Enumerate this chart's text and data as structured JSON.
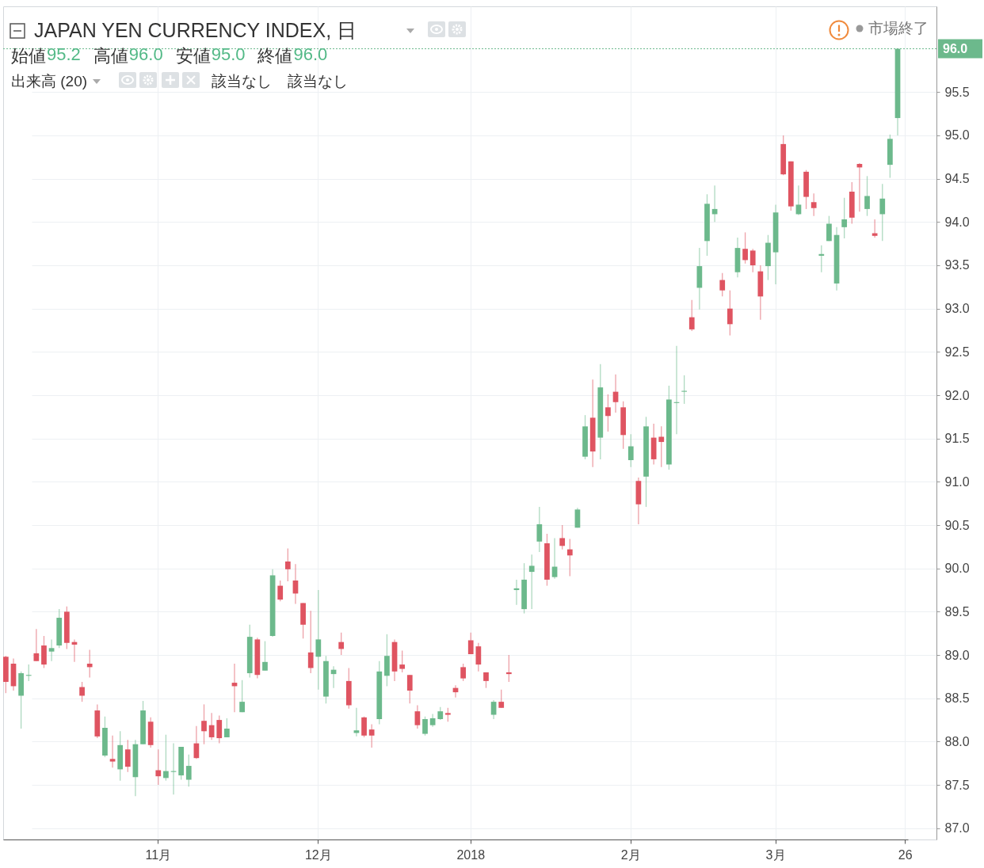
{
  "chart_data": {
    "type": "candlestick",
    "title": "JAPAN YEN CURRENCY INDEX, 日",
    "annotations": [
      "始値",
      "95.2",
      "高値",
      "96.0",
      "安値",
      "95.0",
      "終値",
      "96.0",
      "出来高 (20)",
      "該当なし",
      "該当なし",
      "市場終了"
    ],
    "categories": [
      null,
      null,
      null,
      null,
      null,
      null,
      null,
      null,
      null,
      null,
      null,
      null,
      null,
      null,
      null,
      null,
      null,
      null,
      null,
      null,
      "11月",
      null,
      null,
      null,
      null,
      null,
      null,
      null,
      null,
      null,
      null,
      null,
      null,
      null,
      null,
      null,
      null,
      null,
      null,
      null,
      null,
      "12月",
      null,
      null,
      null,
      null,
      null,
      null,
      null,
      null,
      null,
      null,
      null,
      null,
      null,
      null,
      null,
      null,
      null,
      null,
      null,
      "2018",
      null,
      null,
      null,
      null,
      null,
      null,
      null,
      null,
      null,
      null,
      null,
      null,
      null,
      null,
      null,
      null,
      null,
      null,
      null,
      null,
      "2月",
      null,
      null,
      null,
      null,
      null,
      null,
      null,
      null,
      null,
      null,
      null,
      null,
      null,
      null,
      null,
      null,
      null,
      null,
      "3月",
      null,
      null,
      null,
      null,
      null,
      null,
      null,
      null,
      null,
      null,
      null,
      null,
      null,
      null,
      null,
      null,
      "26"
    ],
    "ohlc": [
      [
        88.98,
        88.99,
        88.56,
        88.69
      ],
      [
        88.9,
        88.96,
        88.59,
        88.64
      ],
      [
        88.53,
        88.81,
        88.15,
        88.79
      ],
      [
        88.76,
        88.89,
        88.7,
        88.77
      ],
      [
        89.02,
        89.3,
        88.93,
        88.93
      ],
      [
        89.11,
        89.22,
        88.85,
        88.89
      ],
      [
        89.04,
        89.18,
        88.93,
        89.08
      ],
      [
        89.11,
        89.53,
        89.08,
        89.43
      ],
      [
        89.5,
        89.56,
        89.07,
        89.14
      ],
      [
        89.15,
        89.18,
        88.92,
        89.12
      ],
      [
        88.63,
        88.69,
        88.46,
        88.53
      ],
      [
        88.9,
        89.06,
        88.74,
        88.86
      ],
      [
        88.36,
        88.43,
        88.04,
        88.06
      ],
      [
        87.84,
        88.29,
        87.82,
        88.16
      ],
      [
        87.8,
        88.07,
        87.7,
        87.77
      ],
      [
        87.68,
        88.12,
        87.55,
        87.96
      ],
      [
        87.91,
        88.02,
        87.65,
        87.71
      ],
      [
        87.59,
        88.02,
        87.37,
        87.97
      ],
      [
        87.97,
        88.47,
        87.97,
        88.36
      ],
      [
        88.23,
        88.28,
        87.93,
        87.96
      ],
      [
        87.67,
        87.91,
        87.5,
        87.6
      ],
      [
        87.58,
        88.08,
        87.55,
        87.66
      ],
      [
        87.65,
        87.98,
        87.39,
        87.66
      ],
      [
        87.61,
        87.94,
        87.56,
        87.94
      ],
      [
        87.56,
        87.85,
        87.48,
        87.72
      ],
      [
        87.98,
        88.18,
        87.8,
        87.81
      ],
      [
        88.24,
        88.43,
        87.97,
        88.12
      ],
      [
        88.19,
        88.33,
        88.02,
        88.05
      ],
      [
        88.25,
        88.3,
        87.98,
        88.04
      ],
      [
        88.05,
        88.27,
        88.05,
        88.15
      ],
      [
        88.68,
        88.9,
        88.34,
        88.64
      ],
      [
        88.34,
        88.71,
        88.34,
        88.46
      ],
      [
        88.79,
        89.35,
        88.74,
        89.21
      ],
      [
        89.18,
        89.2,
        88.73,
        88.77
      ],
      [
        88.82,
        89.16,
        88.82,
        88.92
      ],
      [
        89.22,
        89.99,
        89.21,
        89.92
      ],
      [
        89.8,
        89.86,
        89.62,
        89.64
      ],
      [
        90.08,
        90.23,
        89.85,
        89.99
      ],
      [
        89.86,
        90.05,
        89.59,
        89.71
      ],
      [
        89.6,
        89.6,
        89.19,
        89.35
      ],
      [
        89.03,
        89.51,
        88.79,
        88.85
      ],
      [
        88.98,
        89.75,
        88.6,
        89.18
      ],
      [
        88.52,
        88.99,
        88.44,
        88.93
      ],
      [
        88.78,
        88.87,
        88.62,
        88.83
      ],
      [
        89.15,
        89.26,
        89.0,
        89.07
      ],
      [
        88.7,
        88.85,
        88.38,
        88.42
      ],
      [
        88.1,
        88.39,
        88.06,
        88.13
      ],
      [
        88.28,
        88.29,
        88.05,
        88.07
      ],
      [
        88.14,
        88.2,
        87.93,
        88.07
      ],
      [
        88.26,
        88.93,
        88.2,
        88.81
      ],
      [
        88.76,
        89.24,
        88.64,
        88.99
      ],
      [
        89.15,
        89.18,
        88.7,
        88.81
      ],
      [
        88.89,
        89.05,
        88.8,
        88.84
      ],
      [
        88.77,
        88.77,
        88.44,
        88.59
      ],
      [
        88.35,
        88.42,
        88.15,
        88.19
      ],
      [
        88.09,
        88.29,
        88.07,
        88.26
      ],
      [
        88.19,
        88.32,
        88.17,
        88.27
      ],
      [
        88.26,
        88.4,
        88.25,
        88.35
      ],
      [
        88.33,
        88.39,
        88.23,
        88.31
      ],
      [
        88.62,
        88.65,
        88.51,
        88.57
      ],
      [
        88.86,
        88.9,
        88.7,
        88.73
      ],
      [
        89.17,
        89.26,
        89.01,
        89.01
      ],
      [
        89.1,
        89.14,
        88.81,
        88.89
      ],
      [
        88.8,
        88.8,
        88.62,
        88.7
      ],
      [
        88.31,
        88.48,
        88.26,
        88.46
      ],
      [
        88.46,
        88.6,
        88.39,
        88.39
      ],
      [
        88.8,
        89.0,
        88.69,
        88.78
      ],
      [
        89.75,
        89.87,
        89.58,
        89.77
      ],
      [
        89.53,
        90.06,
        89.48,
        89.87
      ],
      [
        89.96,
        90.16,
        89.53,
        90.03
      ],
      [
        90.31,
        90.71,
        90.19,
        90.51
      ],
      [
        90.29,
        90.4,
        89.8,
        89.87
      ],
      [
        89.9,
        90.35,
        89.88,
        90.02
      ],
      [
        90.35,
        90.5,
        90.22,
        90.26
      ],
      [
        90.22,
        90.34,
        89.91,
        90.15
      ],
      [
        90.47,
        90.7,
        90.47,
        90.68
      ],
      [
        91.29,
        91.77,
        91.26,
        91.64
      ],
      [
        91.74,
        92.18,
        91.17,
        91.35
      ],
      [
        91.51,
        92.36,
        91.26,
        92.09
      ],
      [
        91.86,
        92.01,
        91.58,
        91.76
      ],
      [
        92.04,
        92.24,
        91.8,
        91.92
      ],
      [
        91.86,
        91.93,
        91.38,
        91.54
      ],
      [
        91.25,
        91.55,
        91.17,
        91.41
      ],
      [
        91.01,
        91.05,
        90.51,
        90.74
      ],
      [
        91.06,
        91.75,
        90.71,
        91.64
      ],
      [
        91.51,
        91.67,
        91.2,
        91.26
      ],
      [
        91.52,
        91.64,
        91.17,
        91.46
      ],
      [
        91.2,
        92.11,
        91.14,
        91.95
      ],
      [
        91.91,
        92.57,
        91.55,
        91.92
      ],
      [
        92.04,
        92.23,
        91.9,
        92.05
      ],
      [
        92.9,
        93.1,
        92.74,
        92.76
      ],
      [
        93.24,
        93.7,
        92.99,
        93.49
      ],
      [
        93.78,
        94.32,
        93.61,
        94.21
      ],
      [
        94.09,
        94.42,
        94.0,
        94.15
      ],
      [
        93.33,
        93.41,
        93.14,
        93.21
      ],
      [
        93.0,
        93.21,
        92.69,
        92.82
      ],
      [
        93.42,
        93.82,
        93.36,
        93.7
      ],
      [
        93.69,
        93.88,
        93.52,
        93.56
      ],
      [
        93.67,
        93.69,
        93.42,
        93.5
      ],
      [
        93.43,
        93.5,
        92.87,
        93.14
      ],
      [
        93.49,
        93.85,
        93.33,
        93.76
      ],
      [
        93.65,
        94.2,
        93.28,
        94.11
      ],
      [
        94.9,
        95.0,
        94.54,
        94.55
      ],
      [
        94.7,
        94.7,
        94.13,
        94.18
      ],
      [
        94.09,
        94.42,
        94.08,
        94.2
      ],
      [
        94.58,
        94.6,
        94.15,
        94.29
      ],
      [
        94.23,
        94.33,
        94.07,
        94.16
      ],
      [
        93.61,
        93.73,
        93.42,
        93.63
      ],
      [
        93.78,
        94.07,
        93.78,
        93.98
      ],
      [
        93.29,
        93.94,
        93.21,
        93.85
      ],
      [
        93.94,
        94.28,
        93.81,
        94.03
      ],
      [
        94.35,
        94.46,
        93.98,
        94.05
      ],
      [
        94.67,
        94.68,
        94.12,
        94.63
      ],
      [
        94.15,
        94.53,
        94.07,
        94.3
      ],
      [
        93.87,
        94.03,
        93.82,
        93.84
      ],
      [
        94.09,
        94.44,
        93.78,
        94.27
      ],
      [
        94.66,
        95.01,
        94.51,
        94.96
      ],
      [
        95.2,
        96.0,
        95.0,
        96.0
      ],
      null
    ],
    "colors": [
      "#df5461",
      "#df5461",
      "#6cb98c",
      "#6cb98c",
      "#df5461",
      "#df5461",
      "#6cb98c",
      "#6cb98c",
      "#df5461",
      "#df5461",
      "#df5461",
      "#df5461",
      "#df5461",
      "#6cb98c",
      "#df5461",
      "#6cb98c",
      "#df5461",
      "#6cb98c",
      "#6cb98c",
      "#df5461",
      "#df5461",
      "#6cb98c",
      "#6cb98c",
      "#6cb98c",
      "#6cb98c",
      "#df5461",
      "#df5461",
      "#df5461",
      "#df5461",
      "#6cb98c",
      "#df5461",
      "#6cb98c",
      "#6cb98c",
      "#df5461",
      "#6cb98c",
      "#6cb98c",
      "#df5461",
      "#df5461",
      "#df5461",
      "#df5461",
      "#df5461",
      "#6cb98c",
      "#6cb98c",
      "#6cb98c",
      "#df5461",
      "#df5461",
      "#6cb98c",
      "#df5461",
      "#df5461",
      "#6cb98c",
      "#6cb98c",
      "#df5461",
      "#df5461",
      "#df5461",
      "#df5461",
      "#6cb98c",
      "#6cb98c",
      "#6cb98c",
      "#df5461",
      "#df5461",
      "#df5461",
      "#df5461",
      "#df5461",
      "#df5461",
      "#6cb98c",
      "#df5461",
      "#df5461",
      "#6cb98c",
      "#6cb98c",
      "#6cb98c",
      "#6cb98c",
      "#df5461",
      "#6cb98c",
      "#df5461",
      "#df5461",
      "#6cb98c",
      "#6cb98c",
      "#df5461",
      "#6cb98c",
      "#df5461",
      "#df5461",
      "#df5461",
      "#6cb98c",
      "#df5461",
      "#6cb98c",
      "#df5461",
      "#df5461",
      "#6cb98c",
      "#6cb98c",
      "#6cb98c",
      "#df5461",
      "#6cb98c",
      "#6cb98c",
      "#6cb98c",
      "#df5461",
      "#df5461",
      "#6cb98c",
      "#df5461",
      "#df5461",
      "#df5461",
      "#6cb98c",
      "#6cb98c",
      "#df5461",
      "#df5461",
      "#6cb98c",
      "#df5461",
      "#df5461",
      "#6cb98c",
      "#6cb98c",
      "#6cb98c",
      "#6cb98c",
      "#df5461",
      "#df5461",
      "#6cb98c",
      "#df5461",
      "#6cb98c",
      "#6cb98c",
      "#6cb98c",
      null
    ],
    "ylim": [
      86.87,
      96.49
    ],
    "yticks": [
      {
        "value": 87,
        "label": "87.0"
      },
      87.5,
      {
        "value": 88,
        "label": "88.0"
      },
      88.5,
      {
        "value": 89,
        "label": "89.0"
      },
      89.5,
      {
        "value": 90,
        "label": "90.0"
      },
      90.5,
      {
        "value": 91,
        "label": "91.0"
      },
      91.5,
      {
        "value": 92,
        "label": "92.0"
      },
      92.5,
      {
        "value": 93,
        "label": "93.0"
      },
      93.5,
      {
        "value": 94,
        "label": "94.0"
      },
      94.5,
      {
        "value": 95,
        "label": "95.0"
      },
      95.5
    ],
    "ref_lines": [
      {
        "axis": "y",
        "value": 96.0,
        "label": "96.0",
        "color": "#6cb98c",
        "line_style": "dotted"
      }
    ],
    "grid": true
  }
}
